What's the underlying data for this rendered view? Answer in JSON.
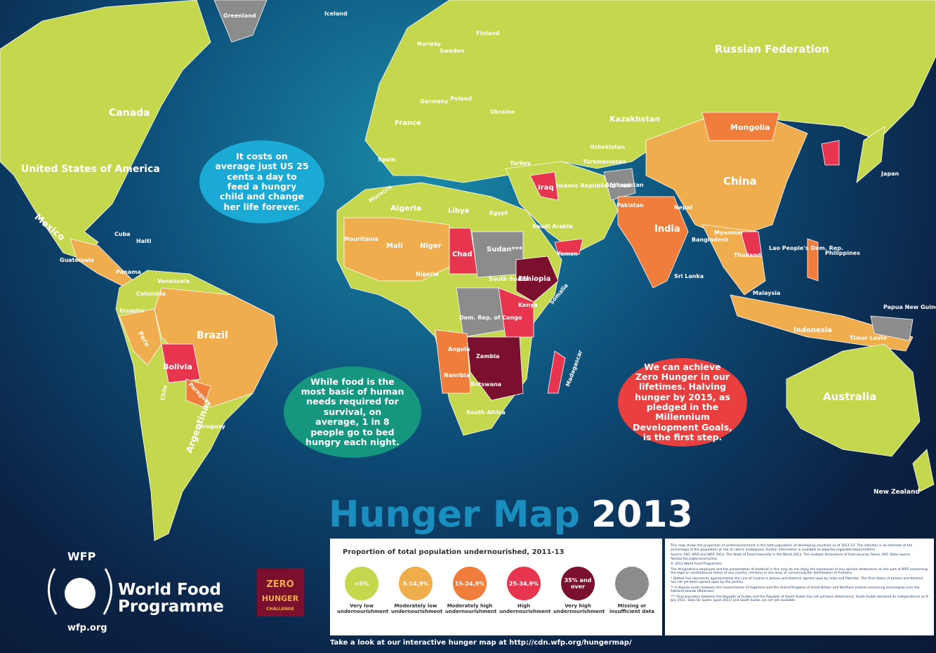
{
  "title": {
    "main": "Hunger Map",
    "year": "2013"
  },
  "callouts": [
    "It costs on average just US 25 cents a day to feed a hungry child and change her life forever.",
    "While food is the most basic of human needs required for survival, on average, 1 in 8 people go to bed hungry each night.",
    "We can achieve Zero Hunger in our lifetimes. Halving hunger by 2015, as pledged in the Millennium Development Goals, is the first step."
  ],
  "country_labels": [
    "Russian Federation",
    "Canada",
    "United States of America",
    "Mexico",
    "Greenland",
    "Iceland",
    "Kazakhstan",
    "Mongolia",
    "China",
    "India",
    "Japan",
    "Australia",
    "New Zealand",
    "Indonesia",
    "Brazil",
    "Argentina",
    "Bolivia",
    "Peru",
    "Colombia",
    "Venezuela",
    "Chile",
    "Paraguay",
    "Uruguay",
    "Algeria",
    "Libya",
    "Egypt",
    "Mali",
    "Niger",
    "Chad",
    "Sudan***",
    "Ethiopia",
    "Kenya",
    "Nigeria",
    "Mauritania",
    "Morocco",
    "Dem. Rep. of Congo",
    "Angola",
    "Zambia",
    "Namibia",
    "Botswana",
    "South Africa",
    "Madagascar",
    "Saudi Arabia",
    "Iraq",
    "Islamic Republic of Iran",
    "Afghanistan",
    "Pakistan",
    "Turkey",
    "Ukraine",
    "Poland",
    "Germany",
    "France",
    "Spain",
    "Finland",
    "Sweden",
    "Norway",
    "Myanmar",
    "Thailand",
    "Philippines",
    "Papua New Guinea",
    "Sri Lanka",
    "Bangladesh",
    "Nepal",
    "Somalia",
    "South Sudan",
    "Cuba",
    "Haiti",
    "Guatemala",
    "Panama",
    "Ecuador",
    "Timor Leste",
    "Malaysia",
    "Lao People's Dem. Rep.",
    "Turkmenistan",
    "Uzbekistan",
    "Yemen"
  ],
  "legend": {
    "heading": "Proportion of total population undernourished, 2011-13",
    "items": [
      {
        "label": "<5%",
        "description": "Very low undernourishment",
        "color": "#c5d84d"
      },
      {
        "label": "5-14,9%",
        "description": "Moderately low undernourishment",
        "color": "#f0ad4e"
      },
      {
        "label": "15-24,9%",
        "description": "Moderately high undernourishment",
        "color": "#f07d3c"
      },
      {
        "label": "25-34,9%",
        "description": "High undernourishment",
        "color": "#e8354f"
      },
      {
        "label": "35% and over",
        "description": "Very high undernourishment",
        "color": "#7a0f2e"
      },
      {
        "description": "Missing or insufficient data",
        "color": "#8c8c8c"
      }
    ]
  },
  "notes": [
    "This map shows the proportion of undernourishment in the total population of developing countries as of 2011-13. The indicator is an estimate of the percentage of the population at risk of caloric inadequacy. Further information is available at www.fao.org/publications/sofi/en/",
    "Source: FAO, IFAD and WFP. 2013. The State of Food Insecurity in the World 2013. The multiple dimensions of food security. Rome, FAO. Data source: faostat.fao.org/economic/ess",
    "© 2013 World Food Programme",
    "The designations employed and the presentation of material in this map do not imply the expression of any opinion whatsoever on the part of WFP concerning the legal or constitutional status of any country, territory or sea area, or concerning the delimitation of frontiers.",
    "* Dotted line represents approximately the Line of Control in Jammu and Kashmir agreed upon by India and Pakistan. The final status of Jammu and Kashmir has not yet been agreed upon by the parties.",
    "** A dispute exists between the Governments of Argentina and the United Kingdom of Great Britain and Northern Ireland concerning sovereignty over the Falkland Islands (Malvinas).",
    "*** Final boundary between the Republic of Sudan and the Republic of South Sudan has not yet been determined. South Sudan declared its independence on 9 July 2011. Data for Sudan (post-2011) and South Sudan are not yet available."
  ],
  "footer": "Take a look at our interactive hunger map at http://cdn.wfp.org/hungermap/",
  "logo": {
    "acronym": "WFP",
    "name": "World Food Programme",
    "url": "wfp.org",
    "zero": "ZERO",
    "hunger": "HUNGER",
    "challenge": "CHALLENGE"
  }
}
